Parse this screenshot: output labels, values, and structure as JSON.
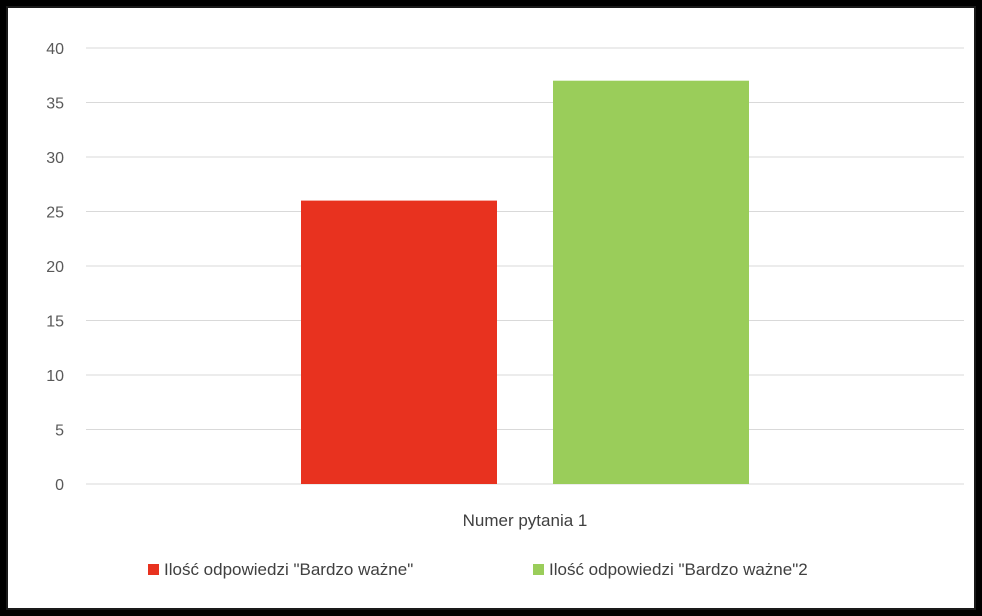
{
  "chart_data": {
    "type": "bar",
    "categories": [
      "Numer pytania 1"
    ],
    "series": [
      {
        "name": "Ilość odpowiedzi \"Bardzo ważne\"",
        "values": [
          26
        ],
        "color": "#e8321f"
      },
      {
        "name": "Ilość odpowiedzi \"Bardzo ważne\"2",
        "values": [
          37
        ],
        "color": "#9acd5a"
      }
    ],
    "ylim": [
      0,
      40
    ],
    "yticks": [
      "0",
      "5",
      "10",
      "15",
      "20",
      "25",
      "30",
      "35",
      "40"
    ],
    "grid": true,
    "legend_position": "bottom",
    "title": "",
    "xlabel": "",
    "ylabel": ""
  },
  "colors": {
    "gridline": "#d9d9d9",
    "axis_text": "#595959",
    "background": "#ffffff"
  }
}
